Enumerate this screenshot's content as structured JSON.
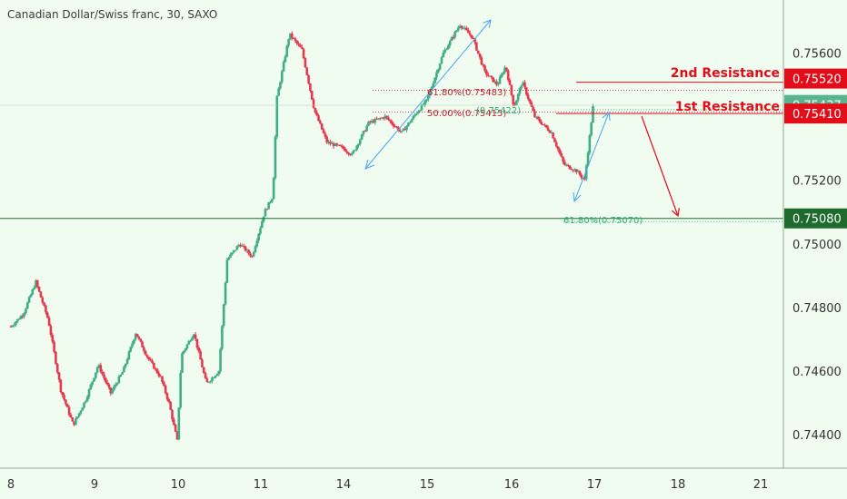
{
  "header": {
    "title": "Canadian Dollar/Swiss franc, 30, SAXO"
  },
  "colors": {
    "background": "#f0fcef",
    "up_candle": "#3fae84",
    "down_candle": "#e33a4e",
    "resistance_red": "#e30d1a",
    "support_green": "#1e6b2d",
    "arrow_blue": "#4aa3f0",
    "fib_red": "#c0202e",
    "fib_green": "#2bb07e"
  },
  "chart_data": {
    "type": "candlestick",
    "title": "Canadian Dollar/Swiss franc, 30, SAXO",
    "y_ticks": [
      "0.75600",
      "0.75200",
      "0.75000",
      "0.74800",
      "0.74600",
      "0.74400"
    ],
    "ylim": [
      0.743,
      0.7575
    ],
    "x_ticks": [
      "8",
      "9",
      "10",
      "11",
      "14",
      "15",
      "16",
      "17",
      "18",
      "21"
    ],
    "price_tags": [
      {
        "label": "0.75520",
        "value": 0.7552,
        "color": "#e30d1a"
      },
      {
        "label": "0.75437",
        "value": 0.75437,
        "color": "#59b48d"
      },
      {
        "label": "0.75410",
        "value": 0.7541,
        "color": "#e30d1a"
      },
      {
        "label": "0.75080",
        "value": 0.7508,
        "color": "#1e6b2d"
      }
    ],
    "levels": [
      {
        "name": "2nd Resistance",
        "label": "2nd Resistance",
        "value": 0.7552
      },
      {
        "name": "1st Resistance",
        "label": "1st Resistance",
        "value": 0.7541
      },
      {
        "name": "Support",
        "label": "",
        "value": 0.7508
      }
    ],
    "fib_labels": [
      {
        "text": "61.80%(0.75483)",
        "value": 0.75483
      },
      {
        "text": "50.00%(0.75415)",
        "value": 0.75415
      },
      {
        "text": "(0.75422)",
        "value": 0.75422
      },
      {
        "text": "61.80%(0.75070)",
        "value": 0.7507
      }
    ],
    "path_points": [
      [
        0,
        0.7474
      ],
      [
        0.15,
        0.7478
      ],
      [
        0.3,
        0.7488
      ],
      [
        0.45,
        0.7476
      ],
      [
        0.6,
        0.7454
      ],
      [
        0.75,
        0.7443
      ],
      [
        0.9,
        0.7451
      ],
      [
        1.05,
        0.7462
      ],
      [
        1.2,
        0.7453
      ],
      [
        1.35,
        0.746
      ],
      [
        1.5,
        0.7472
      ],
      [
        1.65,
        0.7464
      ],
      [
        1.8,
        0.7458
      ],
      [
        1.9,
        0.745
      ],
      [
        2.0,
        0.7438
      ],
      [
        2.05,
        0.7465
      ],
      [
        2.2,
        0.7472
      ],
      [
        2.35,
        0.7456
      ],
      [
        2.5,
        0.746
      ],
      [
        2.6,
        0.7495
      ],
      [
        2.75,
        0.75
      ],
      [
        2.9,
        0.7496
      ],
      [
        3.05,
        0.751
      ],
      [
        3.15,
        0.7515
      ],
      [
        3.2,
        0.7546
      ],
      [
        3.35,
        0.7566
      ],
      [
        3.5,
        0.7561
      ],
      [
        3.65,
        0.7542
      ],
      [
        3.8,
        0.7532
      ],
      [
        4.0,
        0.753
      ],
      [
        4.1,
        0.7528
      ],
      [
        4.3,
        0.7538
      ],
      [
        4.5,
        0.754
      ],
      [
        4.7,
        0.7535
      ],
      [
        4.9,
        0.7542
      ],
      [
        5.0,
        0.7545
      ],
      [
        5.2,
        0.756
      ],
      [
        5.4,
        0.7569
      ],
      [
        5.55,
        0.7565
      ],
      [
        5.7,
        0.7554
      ],
      [
        5.85,
        0.755
      ],
      [
        5.95,
        0.7556
      ],
      [
        6.05,
        0.7543
      ],
      [
        6.15,
        0.7551
      ],
      [
        6.3,
        0.754
      ],
      [
        6.5,
        0.7535
      ],
      [
        6.65,
        0.7525
      ],
      [
        6.8,
        0.7523
      ],
      [
        6.9,
        0.752
      ],
      [
        7.0,
        0.7543
      ]
    ]
  }
}
